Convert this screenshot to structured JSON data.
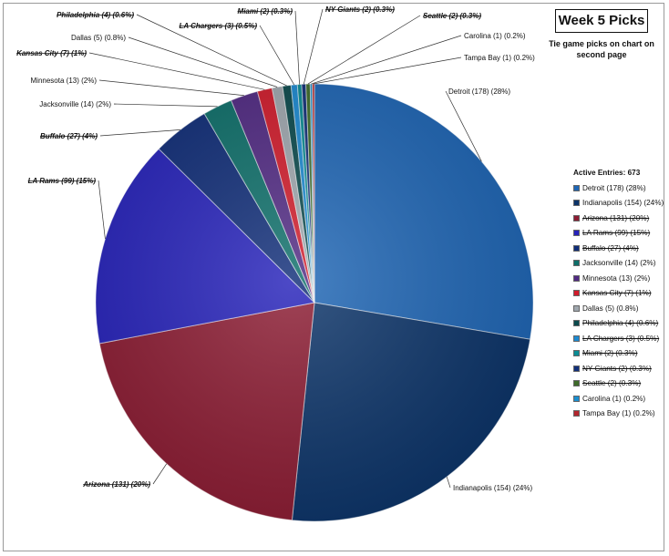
{
  "title": "Week 5 Picks",
  "subtitle": "Tie game picks on chart on second page",
  "chart_data": {
    "type": "pie",
    "legend_title": "Active Entries: 673",
    "legend_position": "right",
    "slices": [
      {
        "team": "Detroit",
        "count": 178,
        "label": "Detroit (178) (28%)",
        "color": "#1f66b5",
        "eliminated": false
      },
      {
        "team": "Indianapolis",
        "count": 154,
        "label": "Indianapolis (154) (24%)",
        "color": "#0c3469",
        "eliminated": false
      },
      {
        "team": "Arizona",
        "count": 131,
        "label": "Arizona (131) (20%)",
        "color": "#8c1c33",
        "eliminated": true
      },
      {
        "team": "LA Rams",
        "count": 99,
        "label": "LA Rams (99) (15%)",
        "color": "#2622ba",
        "eliminated": true
      },
      {
        "team": "Buffalo",
        "count": 27,
        "label": "Buffalo (27) (4%)",
        "color": "#102d78",
        "eliminated": true
      },
      {
        "team": "Jacksonville",
        "count": 14,
        "label": "Jacksonville (14) (2%)",
        "color": "#0e6f6a",
        "eliminated": false
      },
      {
        "team": "Minnesota",
        "count": 13,
        "label": "Minnesota (13) (2%)",
        "color": "#512a83",
        "eliminated": false
      },
      {
        "team": "Kansas City",
        "count": 7,
        "label": "Kansas City (7) (1%)",
        "color": "#d11c2c",
        "eliminated": true
      },
      {
        "team": "Dallas",
        "count": 5,
        "label": "Dallas (5) (0.8%)",
        "color": "#9fa7ae",
        "eliminated": false
      },
      {
        "team": "Philadelphia",
        "count": 4,
        "label": "Philadelphia (4) (0.6%)",
        "color": "#0b4a4d",
        "eliminated": true
      },
      {
        "team": "LA Chargers",
        "count": 3,
        "label": "LA Chargers (3) (0.5%)",
        "color": "#1d8ad1",
        "eliminated": true
      },
      {
        "team": "Miami",
        "count": 2,
        "label": "Miami (2) (0.3%)",
        "color": "#0a8c94",
        "eliminated": true
      },
      {
        "team": "NY Giants",
        "count": 2,
        "label": "NY Giants (2) (0.3%)",
        "color": "#12307a",
        "eliminated": true
      },
      {
        "team": "Seattle",
        "count": 2,
        "label": "Seattle (2) (0.3%)",
        "color": "#3e6b2a",
        "eliminated": true
      },
      {
        "team": "Carolina",
        "count": 1,
        "label": "Carolina (1) (0.2%)",
        "color": "#1b8ecf",
        "eliminated": false
      },
      {
        "team": "Tampa Bay",
        "count": 1,
        "label": "Tampa Bay (1) (0.2%)",
        "color": "#b3262d",
        "eliminated": false
      }
    ]
  }
}
